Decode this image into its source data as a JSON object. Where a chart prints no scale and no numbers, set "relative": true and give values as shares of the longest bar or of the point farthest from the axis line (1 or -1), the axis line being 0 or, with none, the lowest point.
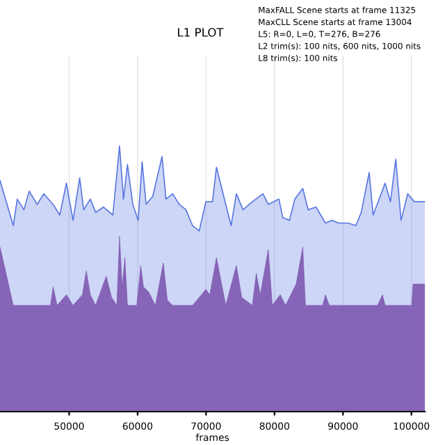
{
  "chart_data": {
    "type": "area",
    "title": "L1 PLOT",
    "xlabel": "frames",
    "relative": true,
    "grid": "x",
    "annotations": [
      "MaxFALL Scene starts at frame 11325",
      "MaxCLL Scene starts at frame 13004",
      "L5: R=0, L=0, T=276, B=276",
      "L2 trim(s): 100 nits, 600 nits, 1000 nits",
      "L8 trim(s): 100 nits"
    ],
    "xlim": [
      39900,
      101980
    ],
    "xticks": [
      50000,
      60000,
      70000,
      80000,
      90000,
      100000
    ],
    "series": [
      {
        "color": "#5a78e0",
        "x": [
          39900,
          41840,
          42420,
          43390,
          44170,
          45330,
          46300,
          47660,
          48630,
          49600,
          50570,
          51540,
          52120,
          53090,
          53870,
          55030,
          56390,
          57360,
          57940,
          58520,
          59300,
          60080,
          60660,
          61240,
          62210,
          63570,
          64150,
          65120,
          66090,
          67060,
          68030,
          69000,
          69970,
          70940,
          71520,
          72880,
          73660,
          74430,
          75400,
          76760,
          78310,
          79090,
          80640,
          81220,
          82190,
          82970,
          84130,
          84910,
          86070,
          87430,
          88400,
          89370,
          90730,
          91890,
          92670,
          93830,
          94410,
          96160,
          96940,
          97710,
          98490,
          99460,
          100430,
          101980
        ],
        "values": [
          0.87,
          0.7,
          0.8,
          0.76,
          0.83,
          0.78,
          0.82,
          0.78,
          0.74,
          0.86,
          0.72,
          0.88,
          0.76,
          0.8,
          0.75,
          0.77,
          0.74,
          1.0,
          0.8,
          0.93,
          0.78,
          0.72,
          0.94,
          0.78,
          0.81,
          0.96,
          0.8,
          0.82,
          0.78,
          0.76,
          0.7,
          0.68,
          0.79,
          0.79,
          0.92,
          0.78,
          0.7,
          0.82,
          0.76,
          0.79,
          0.82,
          0.78,
          0.8,
          0.73,
          0.72,
          0.8,
          0.84,
          0.76,
          0.77,
          0.71,
          0.72,
          0.71,
          0.71,
          0.7,
          0.75,
          0.9,
          0.74,
          0.86,
          0.79,
          0.95,
          0.72,
          0.82,
          0.79,
          0.79
        ]
      },
      {
        "color": "#7e58b0",
        "x": [
          39900,
          41840,
          47270,
          47660,
          48240,
          49600,
          50570,
          51930,
          52510,
          53090,
          53870,
          55420,
          56200,
          56970,
          57360,
          57750,
          58140,
          58520,
          59880,
          60460,
          60850,
          61630,
          62600,
          63760,
          64340,
          65120,
          68030,
          69970,
          70550,
          71520,
          72880,
          74430,
          75210,
          76760,
          77340,
          77920,
          79090,
          79670,
          80840,
          81610,
          82580,
          83160,
          84130,
          84520,
          87040,
          87430,
          88010,
          95060,
          95770,
          96160,
          100040,
          100240,
          101980
        ],
        "values": [
          0.62,
          0.4,
          0.4,
          0.47,
          0.4,
          0.44,
          0.4,
          0.44,
          0.53,
          0.44,
          0.4,
          0.51,
          0.43,
          0.4,
          0.66,
          0.47,
          0.58,
          0.4,
          0.4,
          0.55,
          0.47,
          0.45,
          0.4,
          0.56,
          0.42,
          0.4,
          0.4,
          0.46,
          0.44,
          0.58,
          0.4,
          0.55,
          0.43,
          0.4,
          0.52,
          0.44,
          0.61,
          0.4,
          0.44,
          0.4,
          0.45,
          0.48,
          0.62,
          0.4,
          0.4,
          0.44,
          0.4,
          0.4,
          0.44,
          0.4,
          0.4,
          0.48,
          0.48
        ]
      }
    ]
  }
}
